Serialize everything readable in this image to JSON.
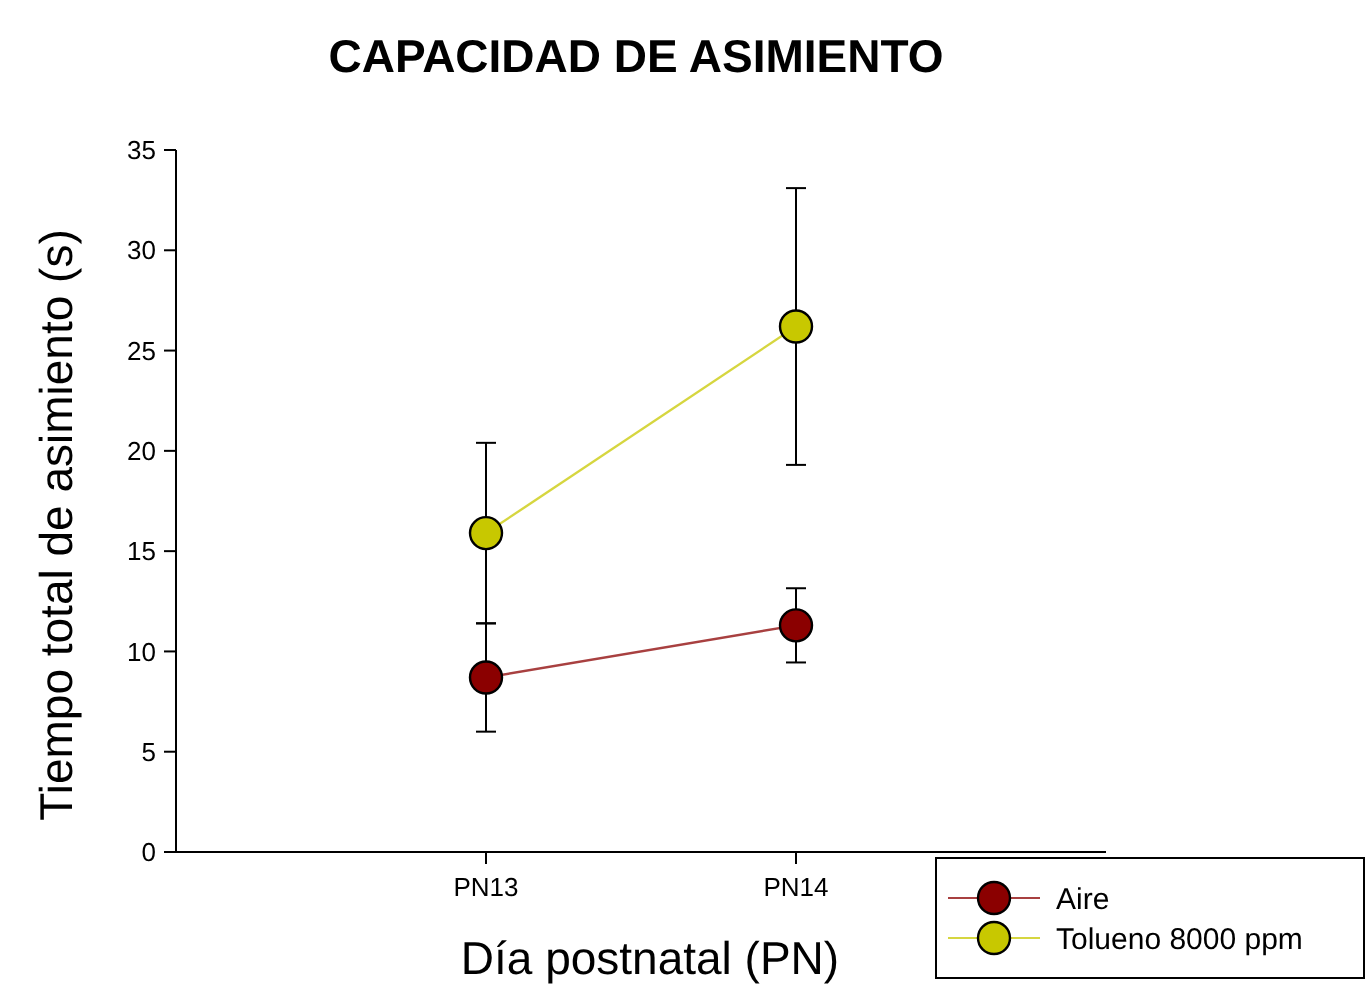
{
  "chart_data": {
    "type": "line",
    "title": "CAPACIDAD DE ASIMIENTO",
    "xlabel": "Día postnatal (PN)",
    "ylabel": "Tiempo total de asimiento (s)",
    "categories": [
      "PN13",
      "PN14"
    ],
    "series": [
      {
        "name": "Aire",
        "color": "#8b0000",
        "values": [
          8.7,
          11.3
        ],
        "errors": [
          2.7,
          1.85
        ]
      },
      {
        "name": "Tolueno 8000 ppm",
        "color": "#c8c800",
        "values": [
          15.9,
          26.2
        ],
        "errors": [
          4.5,
          6.9
        ]
      }
    ],
    "ylim": [
      0,
      35
    ],
    "yticks": [
      0,
      5,
      10,
      15,
      20,
      25,
      30,
      35
    ],
    "marker": "circle",
    "legend": "bottom right",
    "grid": false
  }
}
